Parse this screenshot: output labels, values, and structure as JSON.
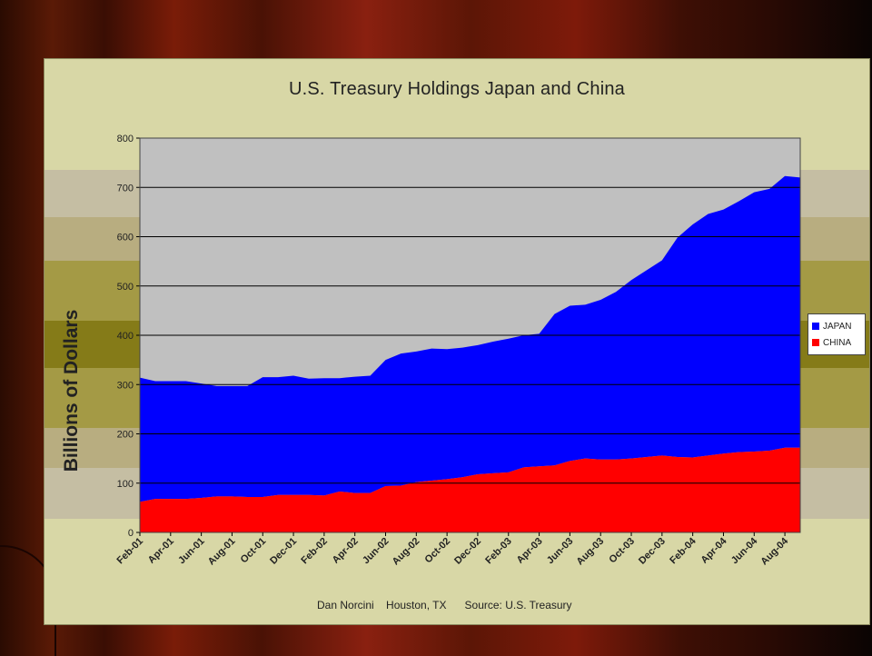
{
  "chart_data": {
    "type": "area",
    "stacked": true,
    "title": "U.S. Treasury Holdings  Japan and China",
    "ylabel": "Billions of Dollars",
    "xlabel": "",
    "ylim": [
      0,
      800
    ],
    "yticks": [
      0,
      100,
      200,
      300,
      400,
      500,
      600,
      700,
      800
    ],
    "grid": true,
    "legend_position": "right",
    "x": [
      "Feb-01",
      "Mar-01",
      "Apr-01",
      "May-01",
      "Jun-01",
      "Jul-01",
      "Aug-01",
      "Sep-01",
      "Oct-01",
      "Nov-01",
      "Dec-01",
      "Jan-02",
      "Feb-02",
      "Mar-02",
      "Apr-02",
      "May-02",
      "Jun-02",
      "Jul-02",
      "Aug-02",
      "Sep-02",
      "Oct-02",
      "Nov-02",
      "Dec-02",
      "Jan-03",
      "Feb-03",
      "Mar-03",
      "Apr-03",
      "May-03",
      "Jun-03",
      "Jul-03",
      "Aug-03",
      "Sep-03",
      "Oct-03",
      "Nov-03",
      "Dec-03",
      "Jan-04",
      "Feb-04",
      "Mar-04",
      "Apr-04",
      "May-04",
      "Jun-04",
      "Jul-04",
      "Aug-04",
      "Sep-04"
    ],
    "x_tick_labels": [
      "Feb-01",
      "Apr-01",
      "Jun-01",
      "Aug-01",
      "Oct-01",
      "Dec-01",
      "Feb-02",
      "Apr-02",
      "Jun-02",
      "Aug-02",
      "Oct-02",
      "Dec-02",
      "Feb-03",
      "Apr-03",
      "Jun-03",
      "Aug-03",
      "Oct-03",
      "Dec-03",
      "Feb-04",
      "Apr-04",
      "Jun-04",
      "Aug-04"
    ],
    "series": [
      {
        "name": "CHINA",
        "color": "#ff0000",
        "values": [
          62,
          68,
          68,
          68,
          70,
          73,
          73,
          72,
          72,
          76,
          76,
          76,
          75,
          83,
          80,
          80,
          94,
          95,
          102,
          105,
          108,
          112,
          118,
          120,
          122,
          132,
          134,
          136,
          145,
          150,
          148,
          148,
          150,
          153,
          156,
          153,
          152,
          156,
          160,
          163,
          164,
          166,
          172,
          172
        ]
      },
      {
        "name": "JAPAN",
        "color": "#0000ff",
        "total_values": [
          314,
          307,
          307,
          307,
          302,
          297,
          297,
          297,
          315,
          315,
          318,
          312,
          313,
          313,
          316,
          318,
          350,
          363,
          367,
          373,
          372,
          375,
          380,
          387,
          393,
          400,
          403,
          443,
          460,
          462,
          472,
          488,
          512,
          532,
          552,
          598,
          625,
          646,
          655,
          672,
          690,
          697,
          723,
          720
        ]
      }
    ],
    "value_note": "JAPAN plotted as the stacked layer above CHINA; total_values are the top edge of the stack."
  },
  "credit_text": "Dan Norcini    Houston, TX      Source: U.S. Treasury",
  "legend": [
    {
      "label": "JAPAN",
      "color": "#0000ff"
    },
    {
      "label": "CHINA",
      "color": "#ff0000"
    }
  ],
  "colors": {
    "plot_bg": "#c0c0c0",
    "panel_bg": "#d8d7a6",
    "japan": "#0000ff",
    "china": "#ff0000"
  }
}
